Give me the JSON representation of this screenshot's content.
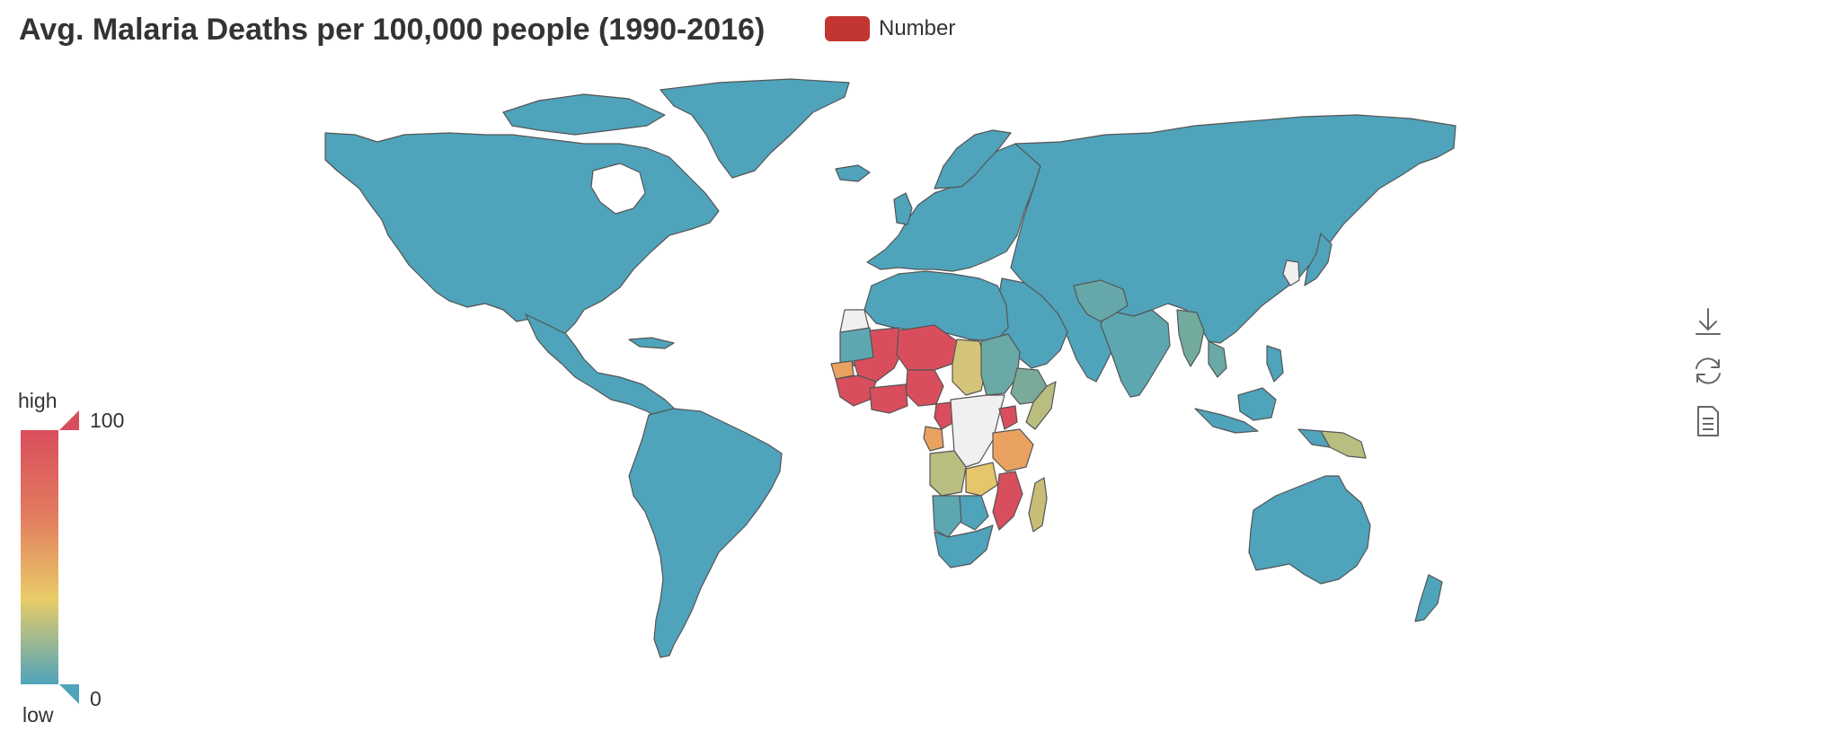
{
  "title": "Avg. Malaria Deaths per 100,000 people (1990-2016)",
  "legend": {
    "label": "Number",
    "color": "#c23531"
  },
  "visual_map": {
    "min": 0,
    "max": 100,
    "min_label": "0",
    "max_label": "100",
    "high_text": "high",
    "low_text": "low",
    "colors": [
      "#4fa3bb",
      "#e9cc68",
      "#e27b5e",
      "#d94e5d"
    ]
  },
  "map_data": {
    "no_data_color": "#f0f0f0",
    "base_color": "#4fa3bb",
    "border_color": "#555555",
    "regions": [
      {
        "name": "Mali",
        "value": 100
      },
      {
        "name": "Burkina Faso",
        "value": 100
      },
      {
        "name": "Niger",
        "value": 100
      },
      {
        "name": "Nigeria",
        "value": 100
      },
      {
        "name": "Guinea",
        "value": 95
      },
      {
        "name": "Sierra Leone",
        "value": 100
      },
      {
        "name": "Cote d'Ivoire",
        "value": 95
      },
      {
        "name": "Ghana",
        "value": 95
      },
      {
        "name": "Cameroon",
        "value": 100
      },
      {
        "name": "Uganda",
        "value": 100
      },
      {
        "name": "Mozambique",
        "value": 100
      },
      {
        "name": "Malawi",
        "value": 100
      },
      {
        "name": "Senegal",
        "value": 75
      },
      {
        "name": "Gabon",
        "value": 75
      },
      {
        "name": "Tanzania",
        "value": 70
      },
      {
        "name": "Zambia",
        "value": 60
      },
      {
        "name": "Chad",
        "value": 50
      },
      {
        "name": "Angola",
        "value": 40
      },
      {
        "name": "Madagascar",
        "value": 40
      },
      {
        "name": "Kenya",
        "value": 35
      },
      {
        "name": "Papua New Guinea",
        "value": 35
      },
      {
        "name": "Ethiopia",
        "value": 28
      },
      {
        "name": "Sudan",
        "value": 20
      },
      {
        "name": "Mauritania",
        "value": 15
      },
      {
        "name": "Myanmar",
        "value": 18
      },
      {
        "name": "India",
        "value": 12
      },
      {
        "name": "Afghanistan",
        "value": 10
      },
      {
        "name": "Pakistan",
        "value": 8
      },
      {
        "name": "Cambodia",
        "value": 12
      },
      {
        "name": "Namibia",
        "value": 5
      },
      {
        "name": "Botswana",
        "value": 2
      },
      {
        "name": "Zimbabwe",
        "value": 4
      },
      {
        "name": "South Africa",
        "value": 0
      }
    ]
  },
  "toolbox": {
    "icons": [
      "download-icon",
      "refresh-icon",
      "data-view-icon"
    ]
  }
}
